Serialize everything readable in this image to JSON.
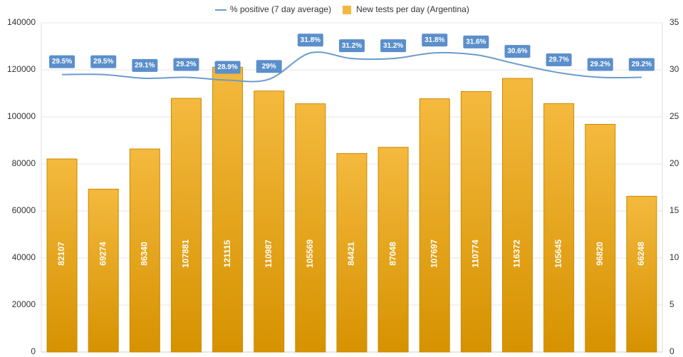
{
  "chart_data": {
    "type": "bar",
    "series": [
      {
        "name": "% positive (7 day average)",
        "type": "line",
        "axis": "y2",
        "color": "#6a9ccf",
        "values": [
          29.5,
          29.5,
          29.1,
          29.2,
          28.9,
          29,
          31.8,
          31.2,
          31.2,
          31.8,
          31.6,
          30.6,
          29.7,
          29.2,
          29.2
        ],
        "value_labels": [
          "29.5%",
          "29.5%",
          "29.1%",
          "29.2%",
          "28.9%",
          "29%",
          "31.8%",
          "31.2%",
          "31.2%",
          "31.8%",
          "31.6%",
          "30.6%",
          "29.7%",
          "29.2%",
          "29.2%"
        ]
      },
      {
        "name": "New tests per day (Argentina)",
        "type": "bar",
        "color": "#f2b73c",
        "values": [
          82107,
          69274,
          86340,
          107881,
          121115,
          110987,
          105569,
          84421,
          87048,
          107697,
          110774,
          116372,
          105645,
          96820,
          66248
        ]
      }
    ],
    "ylim": [
      0,
      140000
    ],
    "yticks": [
      0,
      20000,
      40000,
      60000,
      80000,
      100000,
      120000,
      140000
    ],
    "y2lim": [
      0,
      35
    ],
    "y2ticks": [
      0,
      5,
      10,
      15,
      20,
      25,
      30,
      35
    ],
    "grid": true,
    "legend": "top"
  }
}
